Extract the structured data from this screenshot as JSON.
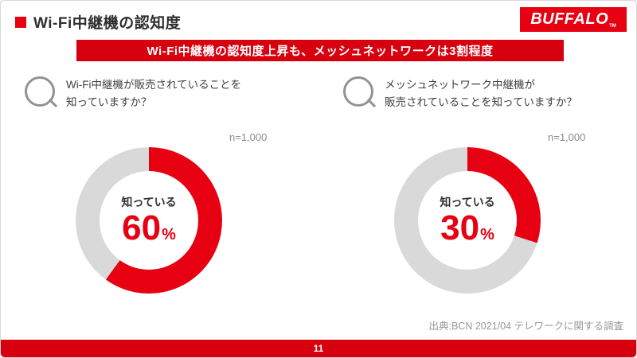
{
  "header": {
    "title": "Wi-Fi中継機の認知度",
    "logo_text": "BUFFALO",
    "logo_tm": "TM"
  },
  "banner": {
    "text": "Wi-Fi中継機の認知度上昇も、メッシュネットワークは3割程度"
  },
  "colors": {
    "accent_red": "#e60012",
    "banner_red": "#d7000f",
    "track_gray": "#d9d9d9",
    "text_dark": "#333333",
    "text_gray": "#8a8a8a"
  },
  "chart_data": [
    {
      "type": "pie",
      "style": "donut",
      "icon": "q-icon",
      "question_line1": "Wi-Fi中継機が販売されていることを",
      "question_line2": "知っていますか？",
      "sample_label": "n=1,000",
      "center_label": "知っている",
      "value": 60,
      "value_text": "60",
      "unit": "%",
      "color": "#e60012",
      "track_color": "#d9d9d9",
      "segments": [
        {
          "label": "知っている",
          "value": 60
        },
        {
          "label": "",
          "value": 40
        }
      ]
    },
    {
      "type": "pie",
      "style": "donut",
      "icon": "q-icon",
      "question_line1": "メッシュネットワーク中継機が",
      "question_line2": "販売されていることを知っていますか？",
      "sample_label": "n=1,000",
      "center_label": "知っている",
      "value": 30,
      "value_text": "30",
      "unit": "%",
      "color": "#e60012",
      "track_color": "#d9d9d9",
      "segments": [
        {
          "label": "知っている",
          "value": 30
        },
        {
          "label": "",
          "value": 70
        }
      ]
    }
  ],
  "footer": {
    "source": "出典:BCN 2021/04 テレワークに関する調査",
    "page_number": "11"
  }
}
